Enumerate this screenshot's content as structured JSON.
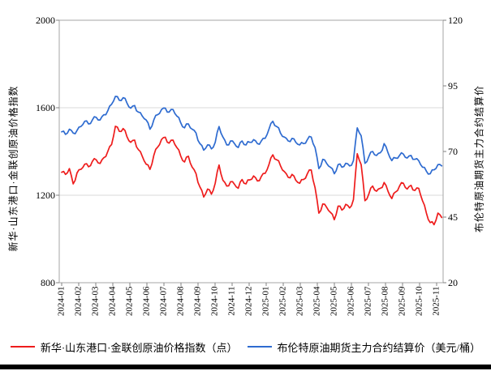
{
  "chart_data": {
    "type": "line",
    "title": "",
    "x_tick_labels": [
      "2024-01",
      "2024-02",
      "2024-03",
      "2024-04",
      "2024-05",
      "2024-06",
      "2024-07",
      "2024-08",
      "2024-09",
      "2024-10",
      "2024-11",
      "2024-12",
      "2025-01",
      "2025-02",
      "2025-03",
      "2025-04",
      "2025-05",
      "2025-06",
      "2025-07",
      "2025-08",
      "2025-09",
      "2025-10",
      "2025-11"
    ],
    "left_axis": {
      "title": "新华·山东港口·金联创原油价格指数",
      "ticks": [
        800,
        1200,
        1600,
        2000
      ],
      "range": [
        800,
        2000
      ]
    },
    "right_axis": {
      "title": "布伦特原油期货主力合约结算价",
      "ticks": [
        20,
        45,
        70,
        95,
        120
      ],
      "range": [
        20,
        120
      ]
    },
    "grid": "horizontal gridlines at left-axis 1200 and 1600, full plot box border",
    "legend_position": "bottom",
    "series": [
      {
        "name": "新华·山东港口·金联创原油价格指数（点）",
        "axis": "left",
        "color": "#ee1c1c",
        "values": [
          1305,
          1295,
          1322,
          1252,
          1302,
          1318,
          1342,
          1330,
          1355,
          1362,
          1345,
          1372,
          1400,
          1432,
          1515,
          1492,
          1505,
          1468,
          1442,
          1452,
          1408,
          1378,
          1342,
          1318,
          1382,
          1420,
          1455,
          1465,
          1438,
          1452,
          1418,
          1380,
          1352,
          1378,
          1328,
          1298,
          1238,
          1192,
          1228,
          1205,
          1255,
          1338,
          1268,
          1242,
          1262,
          1250,
          1232,
          1272,
          1252,
          1270,
          1288,
          1265,
          1286,
          1300,
          1340,
          1385,
          1362,
          1335,
          1308,
          1282,
          1295,
          1268,
          1255,
          1272,
          1298,
          1315,
          1235,
          1118,
          1160,
          1145,
          1122,
          1088,
          1150,
          1132,
          1158,
          1142,
          1180,
          1390,
          1340,
          1175,
          1205,
          1242,
          1218,
          1232,
          1258,
          1218,
          1185,
          1215,
          1242,
          1255,
          1228,
          1245,
          1222,
          1232,
          1175,
          1118,
          1075,
          1065,
          1118,
          1098
        ]
      },
      {
        "name": "布伦特原油期货主力合约结算价（美元/桶）",
        "axis": "right",
        "color": "#2e6bd0",
        "values": [
          77.5,
          76.5,
          78.5,
          77,
          78,
          79.5,
          81.5,
          80.5,
          82,
          83,
          82,
          84,
          85.5,
          88,
          91,
          89.5,
          90.5,
          88.5,
          86.5,
          87.5,
          85,
          83.5,
          82,
          78.5,
          82,
          84,
          86,
          86.5,
          85,
          86,
          83.5,
          81,
          79,
          80.5,
          78.5,
          77,
          73,
          70.5,
          72.5,
          71,
          73.5,
          79.5,
          75.5,
          72.5,
          74,
          73,
          71.5,
          74,
          72.5,
          73.5,
          74.5,
          73,
          74,
          75,
          78.5,
          81.5,
          79.5,
          77,
          75.5,
          74,
          75,
          73.5,
          72.5,
          73,
          74.5,
          75.5,
          71.5,
          63.5,
          67,
          65.5,
          64,
          61.5,
          65,
          64,
          65.5,
          64.5,
          66.5,
          79,
          76,
          65.5,
          68,
          70,
          68.5,
          69.5,
          73,
          69.5,
          66.5,
          67.5,
          68.5,
          69,
          67.5,
          68.5,
          67,
          66.5,
          64,
          62.5,
          61.5,
          63,
          65,
          64.5
        ]
      }
    ]
  },
  "colors": {
    "background": "#ffffff",
    "plot_border": "#a6a6a6",
    "gridline": "#d9d9d9",
    "tick_mark": "#808080",
    "text": "#000000",
    "bottom_bar": "#000000"
  }
}
